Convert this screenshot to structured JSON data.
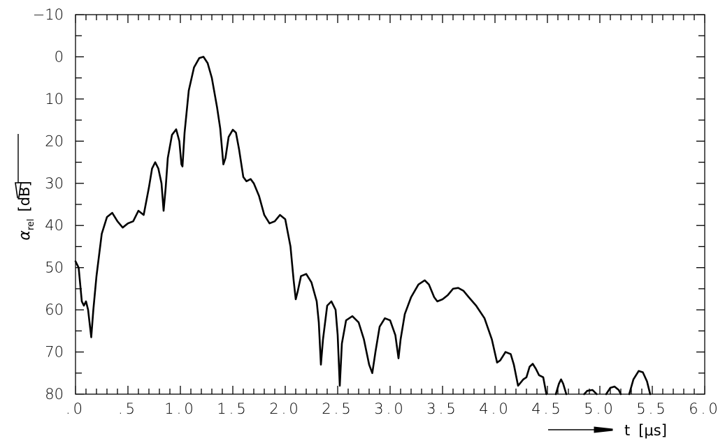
{
  "chart_data": {
    "type": "line",
    "title": "",
    "xlabel": "t",
    "xunit": "[μs]",
    "ylabel_symbol": "α",
    "ylabel_subscript": "rel",
    "yunit": "[dB]",
    "xlim": [
      0.0,
      6.0
    ],
    "ylim": [
      80,
      -10
    ],
    "y_inverted": true,
    "grid": false,
    "x_ticks": [
      ".0",
      ".5",
      "1.0",
      "1.5",
      "2.0",
      "2.5",
      "3.0",
      "3.5",
      "4.0",
      "4.5",
      "5.0",
      "5.5",
      "6.0"
    ],
    "y_ticks": [
      "−10",
      "0",
      "10",
      "20",
      "30",
      "40",
      "50",
      "60",
      "70",
      "80"
    ],
    "series": [
      {
        "color": "#000000",
        "segments": [
          [
            [
              0.0,
              48.5
            ],
            [
              0.03,
              50
            ],
            [
              0.06,
              58
            ],
            [
              0.08,
              59
            ],
            [
              0.1,
              58
            ],
            [
              0.12,
              60
            ],
            [
              0.15,
              66.5
            ],
            [
              0.17,
              60
            ],
            [
              0.2,
              52
            ],
            [
              0.25,
              42
            ],
            [
              0.3,
              38
            ],
            [
              0.35,
              37
            ],
            [
              0.4,
              39
            ],
            [
              0.45,
              40.5
            ],
            [
              0.5,
              39.5
            ],
            [
              0.55,
              39
            ],
            [
              0.6,
              36.5
            ],
            [
              0.65,
              37.5
            ],
            [
              0.7,
              31
            ],
            [
              0.73,
              26.5
            ],
            [
              0.76,
              25
            ],
            [
              0.79,
              26.5
            ],
            [
              0.82,
              30
            ],
            [
              0.84,
              36.5
            ],
            [
              0.86,
              31
            ],
            [
              0.88,
              24
            ],
            [
              0.92,
              18.5
            ],
            [
              0.96,
              17.2
            ],
            [
              0.99,
              20
            ],
            [
              1.01,
              25.5
            ],
            [
              1.02,
              26
            ],
            [
              1.04,
              18
            ],
            [
              1.08,
              8
            ],
            [
              1.13,
              2.5
            ],
            [
              1.18,
              0.3
            ],
            [
              1.22,
              0
            ],
            [
              1.26,
              1.5
            ],
            [
              1.3,
              5
            ],
            [
              1.35,
              12
            ],
            [
              1.38,
              17
            ],
            [
              1.41,
              25.5
            ],
            [
              1.43,
              24
            ],
            [
              1.46,
              19
            ],
            [
              1.5,
              17.3
            ],
            [
              1.53,
              18
            ],
            [
              1.56,
              22
            ],
            [
              1.6,
              28.5
            ],
            [
              1.63,
              29.5
            ],
            [
              1.67,
              29
            ],
            [
              1.7,
              30
            ],
            [
              1.75,
              33
            ],
            [
              1.8,
              37.5
            ],
            [
              1.85,
              39.5
            ],
            [
              1.9,
              39
            ],
            [
              1.95,
              37.5
            ],
            [
              2.0,
              38.5
            ],
            [
              2.05,
              45
            ],
            [
              2.08,
              53
            ],
            [
              2.1,
              57.5
            ],
            [
              2.12,
              55.5
            ],
            [
              2.15,
              52
            ],
            [
              2.2,
              51.5
            ],
            [
              2.25,
              53.5
            ],
            [
              2.3,
              58
            ],
            [
              2.32,
              63
            ],
            [
              2.34,
              73
            ],
            [
              2.36,
              67
            ],
            [
              2.4,
              59
            ],
            [
              2.44,
              58
            ],
            [
              2.48,
              60
            ],
            [
              2.5,
              66
            ],
            [
              2.52,
              78
            ],
            [
              2.54,
              68
            ],
            [
              2.58,
              62.5
            ],
            [
              2.64,
              61.5
            ],
            [
              2.7,
              63
            ],
            [
              2.75,
              67
            ],
            [
              2.8,
              73
            ],
            [
              2.83,
              75
            ],
            [
              2.86,
              70
            ],
            [
              2.9,
              64
            ],
            [
              2.95,
              62
            ],
            [
              3.0,
              62.5
            ],
            [
              3.05,
              66
            ],
            [
              3.08,
              71.5
            ],
            [
              3.1,
              67
            ],
            [
              3.14,
              61
            ],
            [
              3.2,
              57
            ],
            [
              3.27,
              54
            ],
            [
              3.33,
              53
            ],
            [
              3.37,
              54
            ],
            [
              3.42,
              57
            ],
            [
              3.45,
              58
            ],
            [
              3.5,
              57.5
            ],
            [
              3.55,
              56.5
            ],
            [
              3.6,
              55
            ],
            [
              3.65,
              54.8
            ],
            [
              3.7,
              55.5
            ],
            [
              3.75,
              57
            ],
            [
              3.82,
              59
            ],
            [
              3.9,
              62
            ],
            [
              3.97,
              67
            ],
            [
              4.02,
              72.5
            ],
            [
              4.05,
              72
            ],
            [
              4.1,
              70
            ],
            [
              4.15,
              70.5
            ],
            [
              4.18,
              73
            ],
            [
              4.22,
              78
            ],
            [
              4.27,
              76.5
            ],
            [
              4.3,
              76
            ],
            [
              4.33,
              73.5
            ],
            [
              4.36,
              72.8
            ],
            [
              4.39,
              74
            ],
            [
              4.42,
              75.5
            ],
            [
              4.46,
              76
            ],
            [
              4.49,
              80
            ]
          ],
          [
            [
              4.58,
              80
            ],
            [
              4.61,
              77.5
            ],
            [
              4.63,
              76.5
            ],
            [
              4.65,
              77.5
            ],
            [
              4.68,
              80
            ]
          ],
          [
            [
              4.85,
              80
            ],
            [
              4.88,
              79.2
            ],
            [
              4.93,
              79
            ],
            [
              4.97,
              80
            ]
          ],
          [
            [
              5.06,
              80
            ],
            [
              5.1,
              78.5
            ],
            [
              5.14,
              78.2
            ],
            [
              5.18,
              79
            ],
            [
              5.2,
              80
            ]
          ],
          [
            [
              5.28,
              80
            ],
            [
              5.32,
              76.5
            ],
            [
              5.37,
              74.5
            ],
            [
              5.41,
              74.8
            ],
            [
              5.45,
              77
            ],
            [
              5.48,
              80
            ]
          ]
        ]
      }
    ]
  }
}
